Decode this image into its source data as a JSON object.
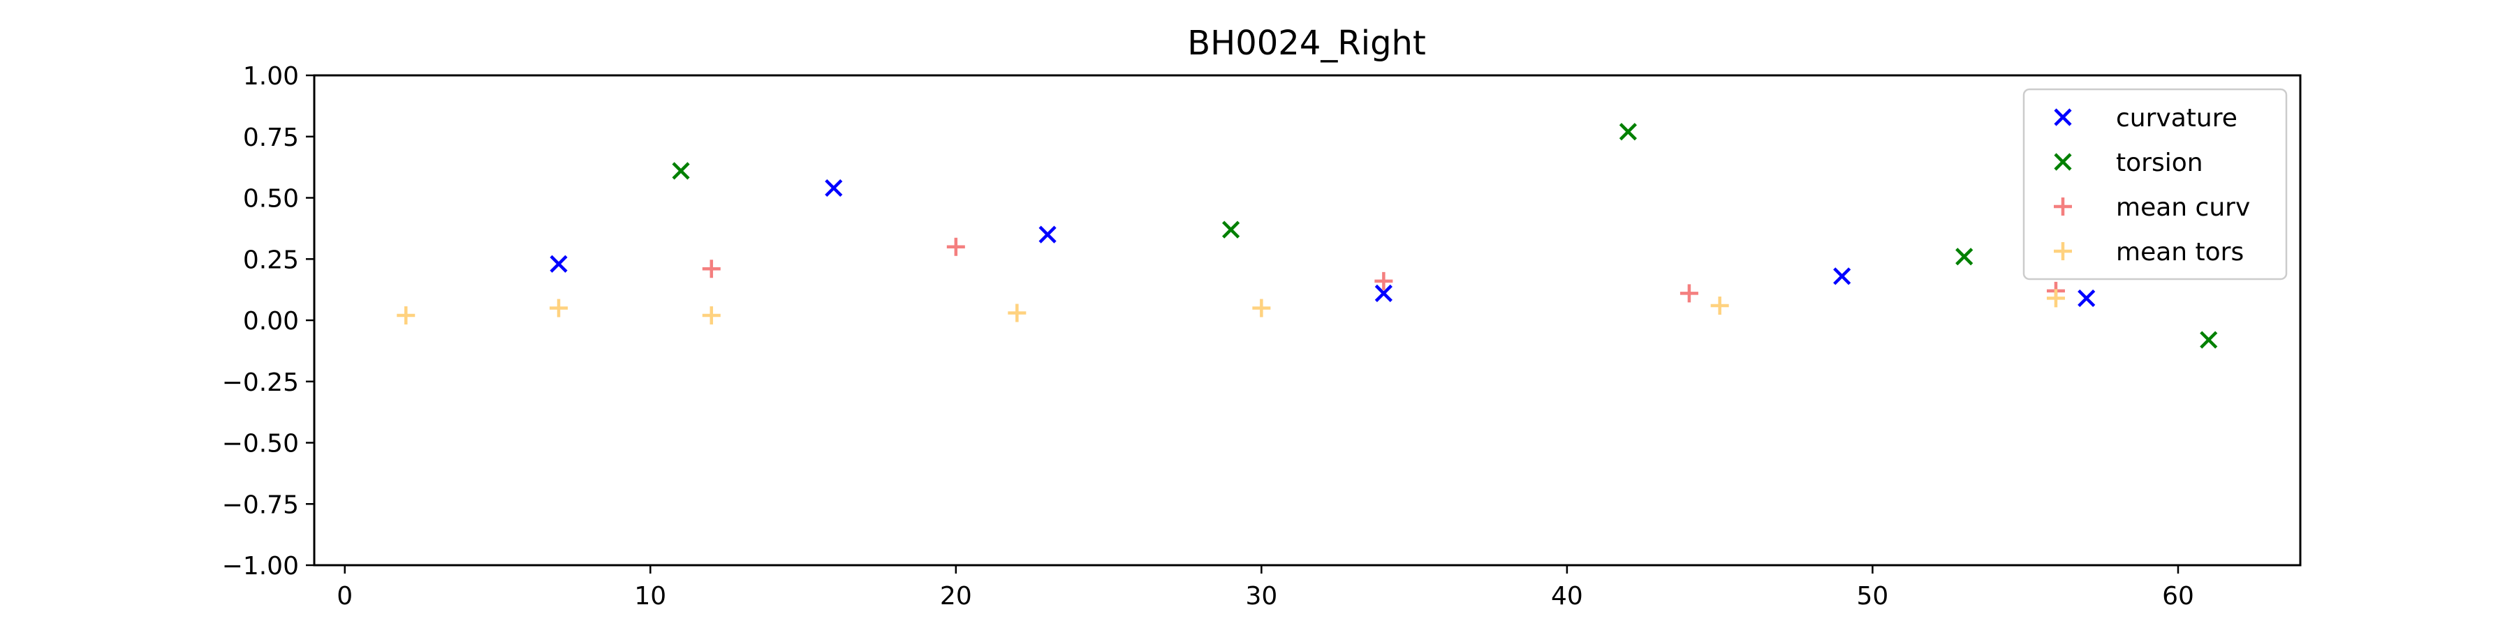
{
  "chart_data": {
    "type": "scatter",
    "title": "BH0024_Right",
    "xlabel": "",
    "ylabel": "",
    "xlim": [
      -1,
      64
    ],
    "ylim": [
      -1,
      1
    ],
    "xticks": [
      0,
      10,
      20,
      30,
      40,
      50,
      60
    ],
    "yticks": [
      -1.0,
      -0.75,
      -0.5,
      -0.25,
      0.0,
      0.25,
      0.5,
      0.75,
      1.0
    ],
    "ytick_labels": [
      "−1.00",
      "−0.75",
      "−0.50",
      "−0.25",
      "0.00",
      "0.25",
      "0.50",
      "0.75",
      "1.00"
    ],
    "xtick_labels": [
      "0",
      "10",
      "20",
      "30",
      "40",
      "50",
      "60"
    ],
    "grid": false,
    "legend_position": "top-right",
    "series": [
      {
        "name": "curvature",
        "marker": "x",
        "color": "#0000ff",
        "points": [
          [
            7,
            0.23
          ],
          [
            16,
            0.54
          ],
          [
            23,
            0.35
          ],
          [
            34,
            0.11
          ],
          [
            49,
            0.18
          ],
          [
            57,
            0.09
          ]
        ]
      },
      {
        "name": "torsion",
        "marker": "x",
        "color": "#008000",
        "points": [
          [
            11,
            0.61
          ],
          [
            29,
            0.37
          ],
          [
            42,
            0.77
          ],
          [
            53,
            0.26
          ],
          [
            61,
            -0.08
          ]
        ]
      },
      {
        "name": "mean curv",
        "marker": "+",
        "color": "#f47f7f",
        "points": [
          [
            12,
            0.21
          ],
          [
            20,
            0.3
          ],
          [
            34,
            0.16
          ],
          [
            44,
            0.11
          ],
          [
            56,
            0.12
          ]
        ]
      },
      {
        "name": "mean tors",
        "marker": "+",
        "color": "#ffd27f",
        "points": [
          [
            2,
            0.02
          ],
          [
            7,
            0.05
          ],
          [
            12,
            0.02
          ],
          [
            22,
            0.03
          ],
          [
            30,
            0.05
          ],
          [
            45,
            0.06
          ],
          [
            56,
            0.09
          ]
        ]
      }
    ]
  }
}
